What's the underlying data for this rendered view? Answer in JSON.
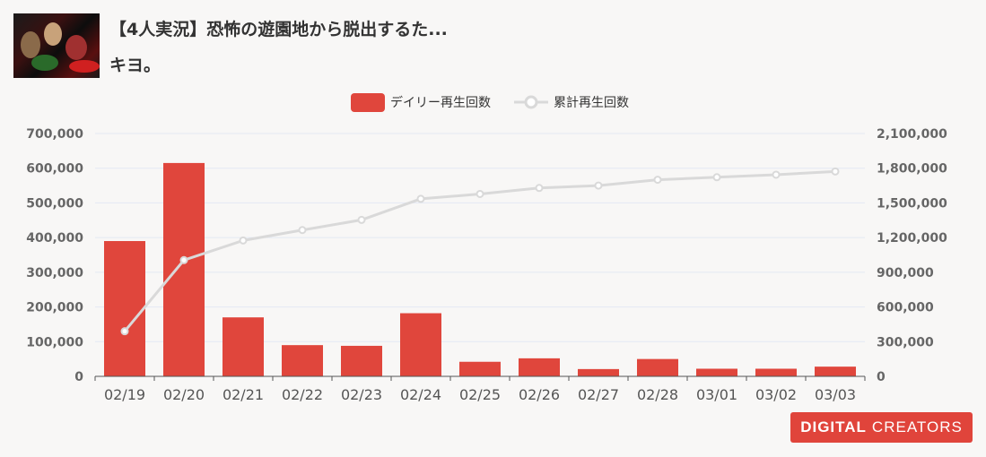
{
  "video": {
    "title": "【4人実況】恐怖の遊園地から脱出するた...",
    "channel": "キヨ。"
  },
  "brand": {
    "bold": "DIGITAL",
    "light": "CREATORS"
  },
  "colors": {
    "bar": "#e0463c",
    "line": "#d9d9d9",
    "grid": "#e3e8f3",
    "axis": "#666666"
  },
  "chart_data": {
    "type": "bar",
    "categories": [
      "02/19",
      "02/20",
      "02/21",
      "02/22",
      "02/23",
      "02/24",
      "02/25",
      "02/26",
      "02/27",
      "02/28",
      "03/01",
      "03/02",
      "03/03"
    ],
    "series": [
      {
        "name": "デイリー再生回数",
        "type": "bar",
        "axis": "left",
        "values": [
          390000,
          615000,
          170000,
          90000,
          88000,
          182000,
          42000,
          52000,
          21000,
          50000,
          22000,
          22000,
          28000
        ]
      },
      {
        "name": "累計再生回数",
        "type": "line",
        "axis": "right",
        "values": [
          390000,
          1005000,
          1175000,
          1265000,
          1353000,
          1535000,
          1577000,
          1629000,
          1650000,
          1700000,
          1722000,
          1744000,
          1772000
        ]
      }
    ],
    "y_left": {
      "lim": [
        0,
        700000
      ],
      "ticks": [
        "0",
        "100,000",
        "200,000",
        "300,000",
        "400,000",
        "500,000",
        "600,000",
        "700,000"
      ]
    },
    "y_right": {
      "lim": [
        0,
        2100000
      ],
      "ticks": [
        "0",
        "300,000",
        "600,000",
        "900,000",
        "1,200,000",
        "1,500,000",
        "1,800,000",
        "2,100,000"
      ]
    },
    "legend_position": "top-center",
    "grid": true
  }
}
